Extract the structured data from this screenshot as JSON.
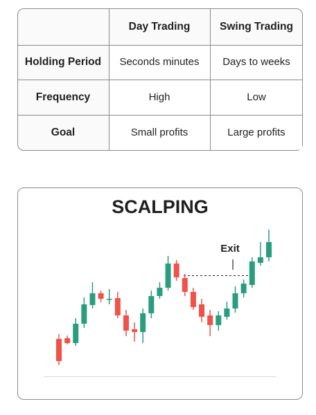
{
  "table": {
    "header": [
      "Day Trading",
      "Swing Trading"
    ],
    "rows": [
      {
        "label": "Holding Period",
        "cells": [
          "Seconds minutes",
          "Days to weeks"
        ]
      },
      {
        "label": "Frequency",
        "cells": [
          "High",
          "Low"
        ]
      },
      {
        "label": "Goal",
        "cells": [
          "Small profits",
          "Large profits"
        ]
      }
    ]
  },
  "chart_data": {
    "type": "candlestick",
    "title": "SCALPING",
    "annotation": "Exit",
    "up_color": "#2a9d7f",
    "down_color": "#f0524a",
    "ylim": [
      0,
      224
    ],
    "open": [
      54,
      55,
      48,
      76,
      103,
      120,
      111,
      113,
      88,
      68,
      64,
      91,
      116,
      128,
      163,
      142,
      122,
      104,
      88,
      74,
      86,
      98,
      120,
      132,
      164,
      172
    ],
    "high": [
      61,
      59,
      84,
      114,
      136,
      124,
      126,
      122,
      96,
      78,
      98,
      124,
      136,
      174,
      168,
      148,
      128,
      112,
      96,
      94,
      108,
      130,
      140,
      172,
      194,
      212
    ],
    "low": [
      16,
      46,
      44,
      70,
      98,
      107,
      104,
      84,
      58,
      50,
      48,
      84,
      112,
      124,
      138,
      116,
      96,
      78,
      58,
      66,
      82,
      92,
      114,
      128,
      160,
      166
    ],
    "close": [
      22,
      48,
      76,
      104,
      120,
      112,
      112,
      88,
      66,
      64,
      91,
      116,
      128,
      163,
      143,
      122,
      100,
      86,
      74,
      88,
      98,
      120,
      134,
      166,
      172,
      194
    ]
  }
}
